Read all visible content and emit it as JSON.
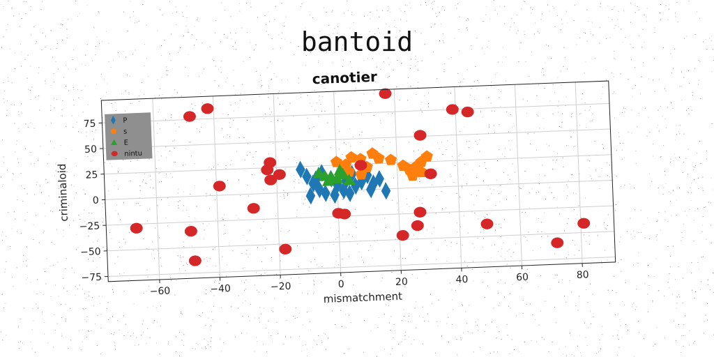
{
  "suptitle": "bantoid",
  "chart_data": {
    "type": "scatter",
    "title": "canotier",
    "xlabel": "mismatchment",
    "ylabel": "criminaloid",
    "xlim": [
      -77,
      91
    ],
    "ylim": [
      -80,
      97
    ],
    "xticks": [
      -60,
      -40,
      -20,
      0,
      20,
      40,
      60,
      80
    ],
    "yticks": [
      -75,
      -50,
      -25,
      0,
      25,
      50,
      75
    ],
    "grid": true,
    "legend_position": "top-left",
    "series": [
      {
        "name": "P",
        "marker": "diamond",
        "color": "#1f77b4",
        "points": [
          [
            -12,
            22
          ],
          [
            -10,
            15
          ],
          [
            -8,
            8
          ],
          [
            -6,
            2
          ],
          [
            -4,
            -2
          ],
          [
            -9,
            -4
          ],
          [
            -5,
            18
          ],
          [
            -2,
            12
          ],
          [
            0,
            6
          ],
          [
            2,
            0
          ],
          [
            4,
            -3
          ],
          [
            6,
            4
          ],
          [
            8,
            8
          ],
          [
            10,
            14
          ],
          [
            12,
            6
          ],
          [
            14,
            10
          ],
          [
            16,
            -2
          ],
          [
            5,
            16
          ],
          [
            -1,
            -4
          ],
          [
            3,
            10
          ],
          [
            11,
            0
          ],
          [
            -7,
            12
          ]
        ]
      },
      {
        "name": "s",
        "marker": "pentagon",
        "color": "#ff7f0e",
        "points": [
          [
            0,
            28
          ],
          [
            3,
            25
          ],
          [
            5,
            32
          ],
          [
            8,
            30
          ],
          [
            10,
            22
          ],
          [
            12,
            35
          ],
          [
            14,
            30
          ],
          [
            18,
            28
          ],
          [
            22,
            22
          ],
          [
            24,
            18
          ],
          [
            26,
            20
          ],
          [
            28,
            15
          ],
          [
            28,
            25
          ],
          [
            30,
            30
          ],
          [
            25,
            12
          ],
          [
            8,
            15
          ],
          [
            4,
            18
          ]
        ]
      },
      {
        "name": "E",
        "marker": "triangle",
        "color": "#2ca02c",
        "points": [
          [
            -6,
            18
          ],
          [
            -4,
            15
          ],
          [
            -2,
            14
          ],
          [
            0,
            12
          ],
          [
            2,
            16
          ],
          [
            4,
            10
          ],
          [
            1,
            20
          ],
          [
            -3,
            10
          ]
        ]
      },
      {
        "name": "nintu",
        "marker": "circle",
        "color": "#d62728",
        "points": [
          [
            -48,
            78
          ],
          [
            -42,
            85
          ],
          [
            17,
            93
          ],
          [
            39,
            75
          ],
          [
            44,
            72
          ],
          [
            28,
            51
          ],
          [
            -22,
            30
          ],
          [
            -23,
            23
          ],
          [
            -19,
            18
          ],
          [
            -22,
            13
          ],
          [
            -39,
            9
          ],
          [
            31,
            13
          ],
          [
            8,
            24
          ],
          [
            -67,
            -29
          ],
          [
            -49,
            -34
          ],
          [
            -28,
            -14
          ],
          [
            0,
            -22
          ],
          [
            2,
            -23
          ],
          [
            27,
            -24
          ],
          [
            26,
            -37
          ],
          [
            21,
            -46
          ],
          [
            49,
            -38
          ],
          [
            81,
            -41
          ],
          [
            72,
            -59
          ],
          [
            -18,
            -55
          ],
          [
            -48,
            -63
          ]
        ]
      }
    ]
  }
}
